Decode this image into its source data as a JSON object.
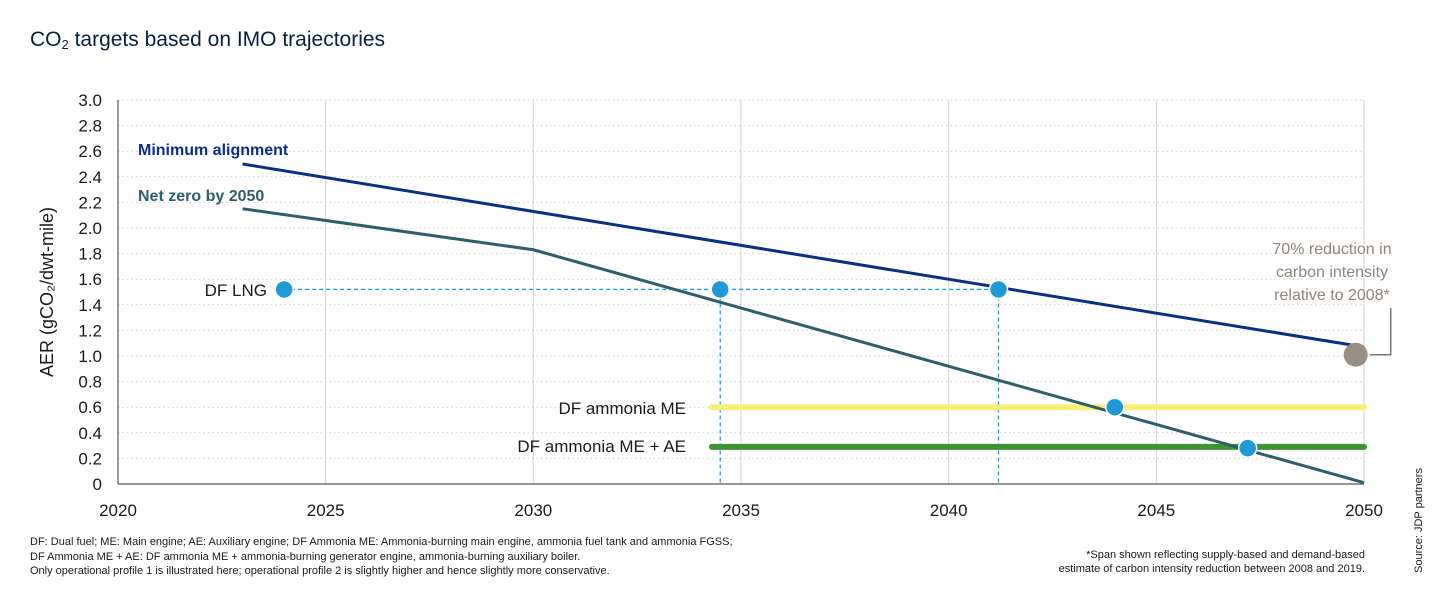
{
  "title_main": "CO",
  "title_sub": "2",
  "title_rest": " targets based on IMO trajectories",
  "chart_data": {
    "type": "line",
    "ylabel": "AER (gCO₂/dwt-mile)",
    "xlim": [
      2020,
      2050
    ],
    "ylim": [
      0,
      3.0
    ],
    "x_ticks": [
      "2020",
      "2025",
      "2030",
      "2035",
      "2040",
      "2045",
      "2050"
    ],
    "y_ticks": [
      "0",
      "0.2",
      "0.4",
      "0.6",
      "0.8",
      "1.0",
      "1.2",
      "1.4",
      "1.6",
      "1.8",
      "2.0",
      "2.2",
      "2.4",
      "2.6",
      "2.8",
      "3.0"
    ],
    "grid": true,
    "series": [
      {
        "name": "Minimum alignment",
        "color": "#0a2f86",
        "x": [
          2023,
          2050
        ],
        "y": [
          2.5,
          1.07
        ]
      },
      {
        "name": "Net zero by 2050",
        "color": "#2d5e6b",
        "x": [
          2023,
          2030,
          2050
        ],
        "y": [
          2.15,
          1.83,
          0.01
        ]
      }
    ],
    "horizontal_levels": [
      {
        "name": "DF ammonia ME",
        "color": "#f7ef7a",
        "x": [
          2034.3,
          2050
        ],
        "y": 0.6
      },
      {
        "name": "DF ammonia ME + AE",
        "color": "#3e9435",
        "x": [
          2034.3,
          2050
        ],
        "y": 0.29
      }
    ],
    "points": [
      {
        "x": 2024,
        "y": 1.52,
        "color": "#1e9bd7"
      },
      {
        "x": 2034.5,
        "y": 1.52,
        "color": "#1e9bd7"
      },
      {
        "x": 2041.2,
        "y": 1.52,
        "color": "#1e9bd7"
      },
      {
        "x": 2044,
        "y": 0.6,
        "color": "#1e9bd7"
      },
      {
        "x": 2047.2,
        "y": 0.28,
        "color": "#1e9bd7"
      },
      {
        "x": 2049.8,
        "y": 1.01,
        "color": "#9a8f85"
      }
    ],
    "dashed_guides": {
      "color": "#1e9bd7",
      "horizontal": {
        "y": 1.52,
        "x": [
          2024,
          2041.2
        ]
      },
      "vertical_x": [
        2034.5,
        2041.2
      ]
    },
    "labels": {
      "df_lng": "DF LNG",
      "df_ammonia_me": "DF ammonia ME",
      "df_ammonia_me_ae": "DF ammonia ME + AE",
      "minimum_alignment": "Minimum alignment",
      "net_zero": "Net zero by 2050",
      "annotation": [
        "70% reduction in",
        "carbon intensity",
        "relative to 2008*"
      ]
    }
  },
  "footnote_left": [
    "DF: Dual fuel; ME: Main engine; AE: Auxiliary engine; DF Ammonia ME: Ammonia-burning main engine, ammonia fuel tank and ammonia FGSS;",
    "DF Ammonia ME + AE: DF ammonia ME + ammonia-burning generator engine, ammonia-burning auxiliary boiler.",
    "Only operational profile 1 is illustrated here; operational profile 2 is slightly higher and hence slightly more conservative."
  ],
  "footnote_right": [
    "*Span shown reflecting supply-based and demand-based",
    "estimate of carbon intensity reduction between 2008 and 2019."
  ],
  "source": "Source: JDP partners"
}
